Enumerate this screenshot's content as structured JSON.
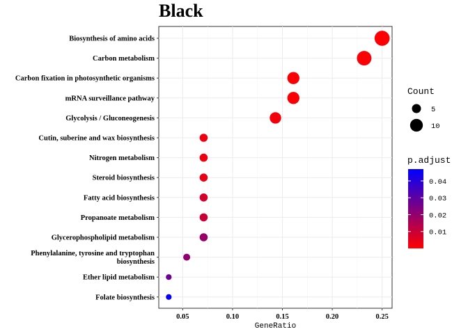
{
  "chart_data": {
    "type": "scatter",
    "title": "Black",
    "xlabel": "GeneRatio",
    "ylabel": "",
    "xlim": [
      0.026,
      0.26
    ],
    "xticks": [
      0.05,
      0.1,
      0.15,
      0.2,
      0.25
    ],
    "xtick_labels": [
      "0.05",
      "0.10",
      "0.15",
      "0.20",
      "0.25"
    ],
    "grid": true,
    "categories": [
      "Biosynthesis of amino acids",
      "Carbon metabolism",
      "Carbon fixation in photosynthetic organisms",
      "mRNA surveillance pathway",
      "Glycolysis / Gluconeogenesis",
      "Cutin, suberine and wax biosynthesis",
      "Nitrogen metabolism",
      "Steroid biosynthesis",
      "Fatty acid biosynthesis",
      "Propanoate metabolism",
      "Glycerophospholipid metabolism",
      "Phenylalanine, tyrosine and tryptophan\nbiosynthesis",
      "Ether lipid metabolism",
      "Folate biosynthesis"
    ],
    "gene_ratio": [
      0.25,
      0.232,
      0.161,
      0.161,
      0.143,
      0.071,
      0.071,
      0.071,
      0.071,
      0.071,
      0.071,
      0.054,
      0.036,
      0.036
    ],
    "count": [
      14,
      13,
      9,
      9,
      8,
      4,
      4,
      4,
      4,
      4,
      4,
      3,
      2,
      2
    ],
    "p_adjust": [
      0.0005,
      0.0008,
      0.001,
      0.001,
      0.002,
      0.003,
      0.003,
      0.004,
      0.008,
      0.01,
      0.019,
      0.02,
      0.027,
      0.046
    ],
    "legend_count": {
      "title": "Count",
      "values": [
        5,
        10
      ],
      "labels": [
        "5",
        "10"
      ]
    },
    "legend_color": {
      "title": "p.adjust",
      "range": [
        0.0,
        0.047
      ],
      "ticks": [
        0.04,
        0.03,
        0.02,
        0.01
      ],
      "tick_labels": [
        "0.04",
        "0.03",
        "0.02",
        "0.01"
      ],
      "low_color": "#FF0000",
      "high_color": "#0000FF"
    },
    "legend_position": "right"
  }
}
